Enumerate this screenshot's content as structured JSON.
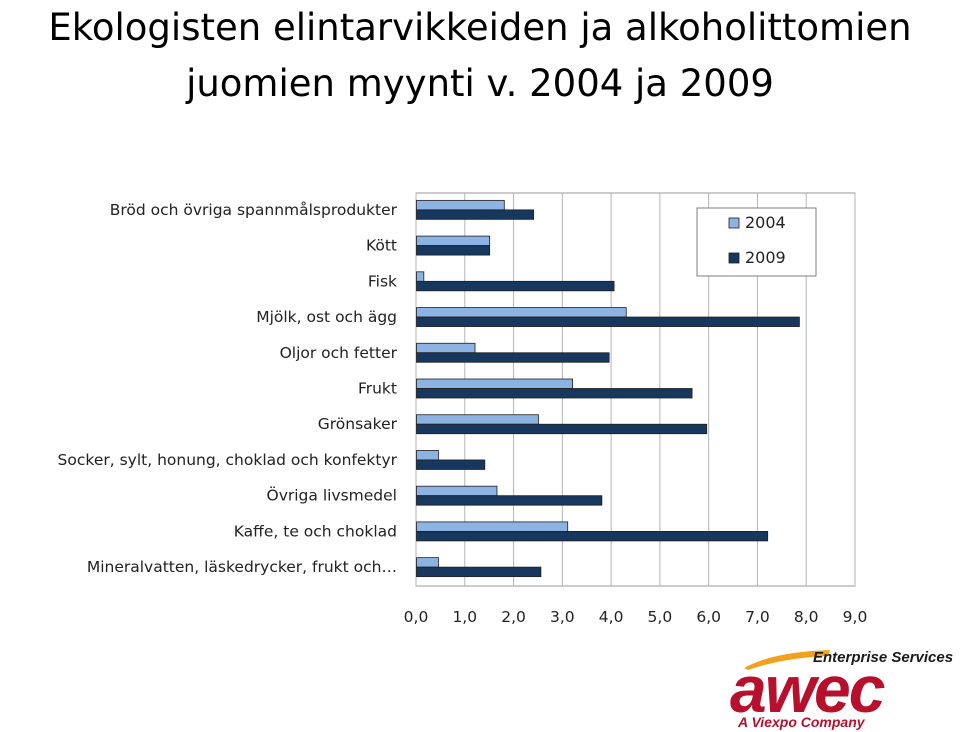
{
  "slide": {
    "title_line1": "Ekologisten elintarvikkeiden ja alkoholittomien",
    "title_line2": "juomien myynti v. 2004 ja 2009"
  },
  "logo": {
    "tagline": "Enterprise Services",
    "wordmark": "awec",
    "subtitle": "A Viexpo Company",
    "color": "#b7102d",
    "swoosh_color": "#f2a21a"
  },
  "chart_data": {
    "type": "bar",
    "orientation": "horizontal",
    "categories": [
      "Bröd och övriga spannmålsprodukter",
      "Kött",
      "Fisk",
      "Mjölk, ost och ägg",
      "Oljor och fetter",
      "Frukt",
      "Grönsaker",
      "Socker, sylt, honung, choklad och konfektyr",
      "Övriga livsmedel",
      "Kaffe, te och choklad",
      "Mineralvatten, läskedrycker, frukt och…"
    ],
    "series": [
      {
        "name": "2004",
        "color": "#8db3e2",
        "values": [
          1.8,
          1.5,
          0.15,
          4.3,
          1.2,
          3.2,
          2.5,
          0.45,
          1.65,
          3.1,
          0.45
        ]
      },
      {
        "name": "2009",
        "color": "#17375e",
        "values": [
          2.4,
          1.5,
          4.05,
          7.85,
          3.95,
          5.65,
          5.95,
          1.4,
          3.8,
          7.2,
          2.55
        ]
      }
    ],
    "xlim": [
      0,
      9
    ],
    "x_ticks": [
      "0,0",
      "1,0",
      "2,0",
      "3,0",
      "4,0",
      "5,0",
      "6,0",
      "7,0",
      "8,0",
      "9,0"
    ],
    "grid": "vertical",
    "legend_position": "top-right"
  }
}
